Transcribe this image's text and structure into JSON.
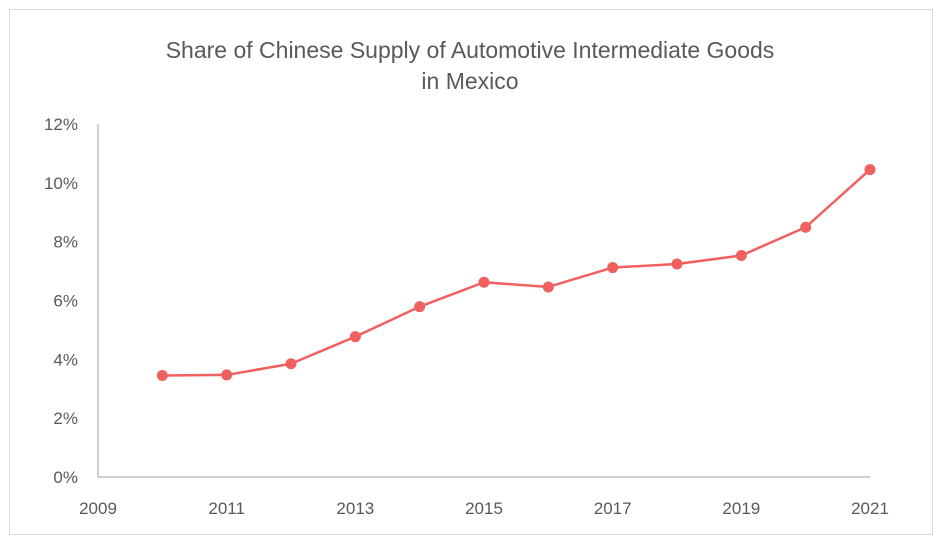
{
  "chart_data": {
    "type": "line",
    "title": [
      "Share of Chinese Supply of Automotive Intermediate Goods",
      "in Mexico"
    ],
    "xlabel": "",
    "ylabel": "",
    "x": [
      2010,
      2011,
      2012,
      2013,
      2014,
      2015,
      2016,
      2017,
      2018,
      2019,
      2020,
      2021
    ],
    "series": [
      {
        "values": [
          3.45,
          3.47,
          3.85,
          4.77,
          5.79,
          6.62,
          6.46,
          7.12,
          7.24,
          7.53,
          8.49,
          10.45
        ],
        "color": "#f0605f"
      }
    ],
    "xlim": [
      2009,
      2021
    ],
    "ylim": [
      0,
      12
    ],
    "x_ticks": [
      "2009",
      "2011",
      "2013",
      "2015",
      "2017",
      "2019",
      "2021"
    ],
    "y_ticks": [
      "0%",
      "2%",
      "4%",
      "6%",
      "8%",
      "10%",
      "12%"
    ],
    "grid": false,
    "legend": "none",
    "marker": "circle"
  }
}
